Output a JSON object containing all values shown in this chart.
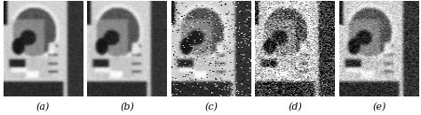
{
  "labels": [
    "(a)",
    "(b)",
    "(c)",
    "(d)",
    "(e)"
  ],
  "n_images": 5,
  "bg_color": "#ffffff",
  "label_fontsize": 8,
  "fig_width": 4.74,
  "fig_height": 1.3,
  "dpi": 100
}
